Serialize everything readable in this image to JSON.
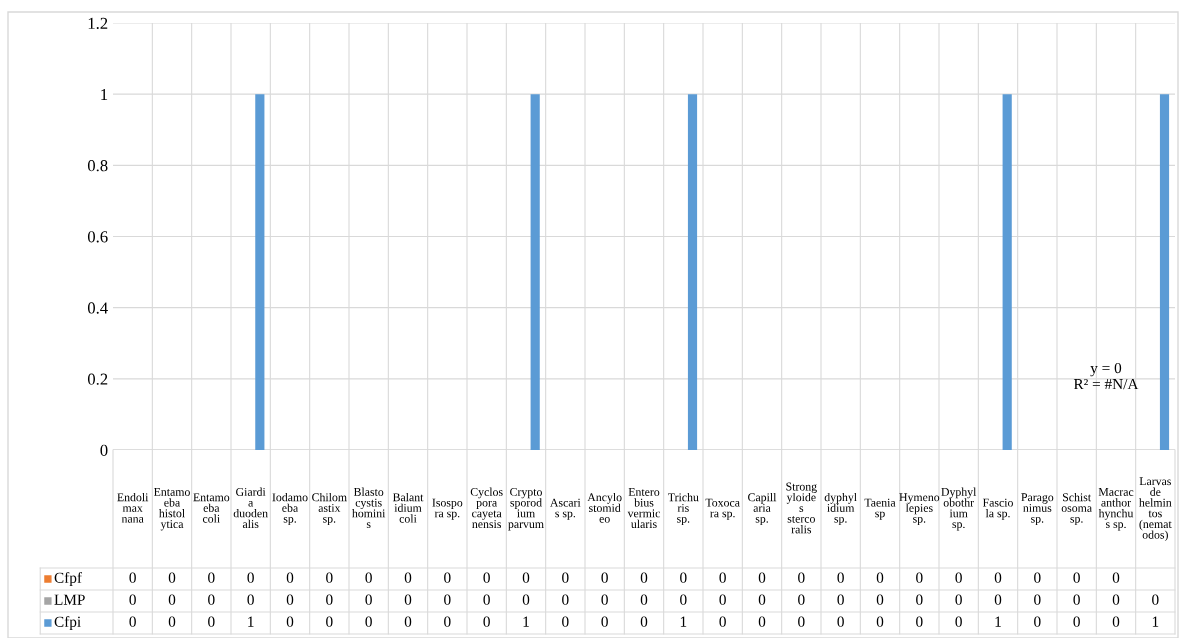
{
  "chart_data": {
    "type": "bar",
    "categories": [
      "Endolimax nana",
      "Entamoeba histolytica",
      "Entamoeba coli",
      "Giardia duodenalis",
      "Iodamoeba sp.",
      "Chilomastix sp.",
      "Blastocystis hominis",
      "Balantidium coli",
      "Isospora sp.",
      "Cyclospora cayetanensis",
      "Cryptosporodium parvum",
      "Ascaris sp.",
      "Ancylostomideo",
      "Enterobius vermicularis",
      "Trichuris sp.",
      "Toxocara sp.",
      "Capillaria sp.",
      "Strongyloides stercoralis",
      "dyphylidium sp.",
      "Taenia sp",
      "Hymenolepies sp.",
      "Dyphylobothrium sp.",
      "Fasciola sp.",
      "Paragonimus sp.",
      "Schistosoma sp.",
      "Macracanthorhynchus sp.",
      "Larvas de helmintos (nematodos)"
    ],
    "series": [
      {
        "name": "Cfpf",
        "color": "#ed7d31",
        "values": [
          0,
          0,
          0,
          0,
          0,
          0,
          0,
          0,
          0,
          0,
          0,
          0,
          0,
          0,
          0,
          0,
          0,
          0,
          0,
          0,
          0,
          0,
          0,
          0,
          0,
          0,
          null
        ]
      },
      {
        "name": "LMP",
        "color": "#a5a5a5",
        "values": [
          0,
          0,
          0,
          0,
          0,
          0,
          0,
          0,
          0,
          0,
          0,
          0,
          0,
          0,
          0,
          0,
          0,
          0,
          0,
          0,
          0,
          0,
          0,
          0,
          0,
          0,
          0
        ]
      },
      {
        "name": "Cfpi",
        "color": "#5b9bd5",
        "values": [
          0,
          0,
          0,
          1,
          0,
          0,
          0,
          0,
          0,
          0,
          1,
          0,
          0,
          0,
          1,
          0,
          0,
          0,
          0,
          0,
          0,
          0,
          1,
          0,
          0,
          0,
          1
        ]
      }
    ],
    "ylim": [
      0,
      1.2
    ],
    "yticks": [
      0,
      0.2,
      0.4,
      0.6,
      0.8,
      1,
      1.2
    ],
    "grid": true,
    "data_labels": true,
    "annotations": [
      "y = 0\nR² = #N/A"
    ]
  }
}
